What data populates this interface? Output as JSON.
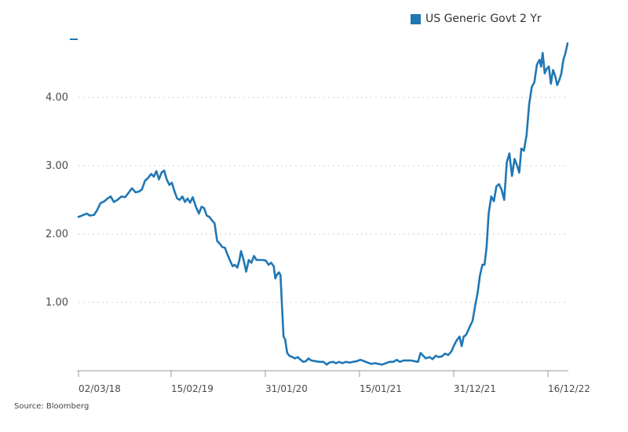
{
  "legend": {
    "label": "US Generic Govt 2 Yr",
    "color": "#1f77b4"
  },
  "source": "Source: Bloomberg",
  "chart_data": {
    "type": "line",
    "title": "",
    "xlabel": "",
    "ylabel": "",
    "ylim": [
      0.0,
      4.85
    ],
    "grid": "horizontal dotted",
    "legend_position": "top-right",
    "y_ticks": [
      {
        "value": 1.0,
        "label": "1.00"
      },
      {
        "value": 2.0,
        "label": "2.00"
      },
      {
        "value": 3.0,
        "label": "3.00"
      },
      {
        "value": 4.0,
        "label": "4.00"
      }
    ],
    "x_ticks": [
      "02/03/18",
      "15/02/19",
      "31/01/20",
      "15/01/21",
      "31/12/21",
      "16/12/22"
    ],
    "series": [
      {
        "name": "US Generic Govt 2 Yr",
        "color": "#1f77b4",
        "points": [
          [
            0.0,
            2.25
          ],
          [
            1.0,
            2.28
          ],
          [
            1.6,
            2.3
          ],
          [
            2.2,
            2.27
          ],
          [
            3.0,
            2.28
          ],
          [
            3.6,
            2.35
          ],
          [
            4.2,
            2.45
          ],
          [
            5.0,
            2.48
          ],
          [
            5.6,
            2.52
          ],
          [
            6.2,
            2.55
          ],
          [
            6.8,
            2.47
          ],
          [
            7.5,
            2.5
          ],
          [
            8.3,
            2.55
          ],
          [
            9.0,
            2.54
          ],
          [
            9.6,
            2.6
          ],
          [
            10.3,
            2.67
          ],
          [
            11.0,
            2.61
          ],
          [
            11.6,
            2.62
          ],
          [
            12.2,
            2.65
          ],
          [
            12.8,
            2.78
          ],
          [
            13.4,
            2.82
          ],
          [
            14.0,
            2.88
          ],
          [
            14.5,
            2.84
          ],
          [
            15.0,
            2.92
          ],
          [
            15.5,
            2.8
          ],
          [
            16.0,
            2.9
          ],
          [
            16.5,
            2.93
          ],
          [
            17.0,
            2.8
          ],
          [
            17.5,
            2.72
          ],
          [
            18.0,
            2.75
          ],
          [
            18.5,
            2.62
          ],
          [
            19.0,
            2.52
          ],
          [
            19.5,
            2.5
          ],
          [
            20.0,
            2.55
          ],
          [
            20.5,
            2.47
          ],
          [
            21.0,
            2.52
          ],
          [
            21.5,
            2.46
          ],
          [
            22.0,
            2.54
          ],
          [
            22.6,
            2.4
          ],
          [
            23.2,
            2.3
          ],
          [
            23.7,
            2.4
          ],
          [
            24.2,
            2.38
          ],
          [
            24.7,
            2.27
          ],
          [
            25.2,
            2.25
          ],
          [
            25.7,
            2.2
          ],
          [
            26.2,
            2.16
          ],
          [
            26.7,
            1.9
          ],
          [
            27.2,
            1.86
          ],
          [
            27.7,
            1.81
          ],
          [
            28.2,
            1.8
          ],
          [
            28.7,
            1.7
          ],
          [
            29.2,
            1.61
          ],
          [
            29.7,
            1.53
          ],
          [
            30.1,
            1.55
          ],
          [
            30.6,
            1.51
          ],
          [
            31.0,
            1.62
          ],
          [
            31.3,
            1.75
          ],
          [
            31.8,
            1.62
          ],
          [
            32.3,
            1.45
          ],
          [
            32.8,
            1.62
          ],
          [
            33.3,
            1.58
          ],
          [
            33.8,
            1.68
          ],
          [
            34.3,
            1.62
          ],
          [
            34.9,
            1.62
          ],
          [
            35.5,
            1.62
          ],
          [
            36.1,
            1.61
          ],
          [
            36.6,
            1.55
          ],
          [
            37.1,
            1.58
          ],
          [
            37.6,
            1.53
          ],
          [
            37.9,
            1.35
          ],
          [
            38.2,
            1.4
          ],
          [
            38.6,
            1.44
          ],
          [
            38.9,
            1.4
          ],
          [
            39.2,
            0.93
          ],
          [
            39.5,
            0.5
          ],
          [
            39.8,
            0.46
          ],
          [
            40.2,
            0.26
          ],
          [
            40.6,
            0.22
          ],
          [
            41.2,
            0.2
          ],
          [
            41.7,
            0.18
          ],
          [
            42.2,
            0.2
          ],
          [
            42.8,
            0.16
          ],
          [
            43.3,
            0.13
          ],
          [
            43.8,
            0.14
          ],
          [
            44.3,
            0.18
          ],
          [
            44.8,
            0.15
          ],
          [
            45.6,
            0.14
          ],
          [
            46.4,
            0.13
          ],
          [
            47.2,
            0.13
          ],
          [
            47.8,
            0.09
          ],
          [
            48.3,
            0.12
          ],
          [
            49.0,
            0.13
          ],
          [
            49.6,
            0.11
          ],
          [
            50.2,
            0.13
          ],
          [
            50.8,
            0.11
          ],
          [
            51.5,
            0.13
          ],
          [
            52.2,
            0.12
          ],
          [
            52.9,
            0.13
          ],
          [
            53.6,
            0.14
          ],
          [
            54.3,
            0.16
          ],
          [
            55.0,
            0.14
          ],
          [
            55.7,
            0.12
          ],
          [
            56.4,
            0.1
          ],
          [
            57.1,
            0.11
          ],
          [
            57.8,
            0.1
          ],
          [
            58.5,
            0.09
          ],
          [
            59.2,
            0.11
          ],
          [
            59.9,
            0.13
          ],
          [
            60.6,
            0.13
          ],
          [
            61.3,
            0.16
          ],
          [
            61.9,
            0.13
          ],
          [
            62.6,
            0.15
          ],
          [
            63.3,
            0.15
          ],
          [
            64.0,
            0.15
          ],
          [
            64.7,
            0.14
          ],
          [
            65.4,
            0.13
          ],
          [
            65.9,
            0.26
          ],
          [
            66.4,
            0.22
          ],
          [
            66.9,
            0.18
          ],
          [
            67.6,
            0.2
          ],
          [
            68.2,
            0.17
          ],
          [
            68.8,
            0.22
          ],
          [
            69.4,
            0.2
          ],
          [
            70.0,
            0.21
          ],
          [
            70.6,
            0.25
          ],
          [
            71.2,
            0.23
          ],
          [
            71.8,
            0.28
          ],
          [
            72.4,
            0.38
          ],
          [
            72.9,
            0.45
          ],
          [
            73.4,
            0.5
          ],
          [
            73.8,
            0.36
          ],
          [
            74.2,
            0.5
          ],
          [
            74.6,
            0.52
          ],
          [
            75.0,
            0.58
          ],
          [
            75.4,
            0.65
          ],
          [
            75.9,
            0.73
          ],
          [
            76.4,
            0.95
          ],
          [
            76.9,
            1.15
          ],
          [
            77.3,
            1.38
          ],
          [
            77.8,
            1.55
          ],
          [
            78.2,
            1.55
          ],
          [
            78.6,
            1.8
          ],
          [
            79.0,
            2.3
          ],
          [
            79.5,
            2.55
          ],
          [
            80.0,
            2.48
          ],
          [
            80.5,
            2.7
          ],
          [
            81.0,
            2.73
          ],
          [
            81.5,
            2.65
          ],
          [
            82.0,
            2.5
          ],
          [
            82.5,
            3.05
          ],
          [
            83.0,
            3.18
          ],
          [
            83.5,
            2.85
          ],
          [
            84.0,
            3.1
          ],
          [
            84.5,
            3.0
          ],
          [
            84.9,
            2.9
          ],
          [
            85.3,
            3.25
          ],
          [
            85.8,
            3.22
          ],
          [
            86.3,
            3.45
          ],
          [
            86.8,
            3.9
          ],
          [
            87.3,
            4.15
          ],
          [
            87.8,
            4.22
          ],
          [
            88.3,
            4.48
          ],
          [
            88.8,
            4.55
          ],
          [
            89.1,
            4.45
          ],
          [
            89.4,
            4.65
          ],
          [
            89.8,
            4.35
          ],
          [
            90.2,
            4.42
          ],
          [
            90.6,
            4.45
          ],
          [
            91.0,
            4.2
          ],
          [
            91.4,
            4.4
          ],
          [
            91.8,
            4.32
          ],
          [
            92.2,
            4.18
          ],
          [
            92.6,
            4.25
          ],
          [
            93.0,
            4.35
          ],
          [
            93.4,
            4.55
          ],
          [
            93.8,
            4.65
          ],
          [
            94.2,
            4.79
          ]
        ]
      }
    ]
  }
}
